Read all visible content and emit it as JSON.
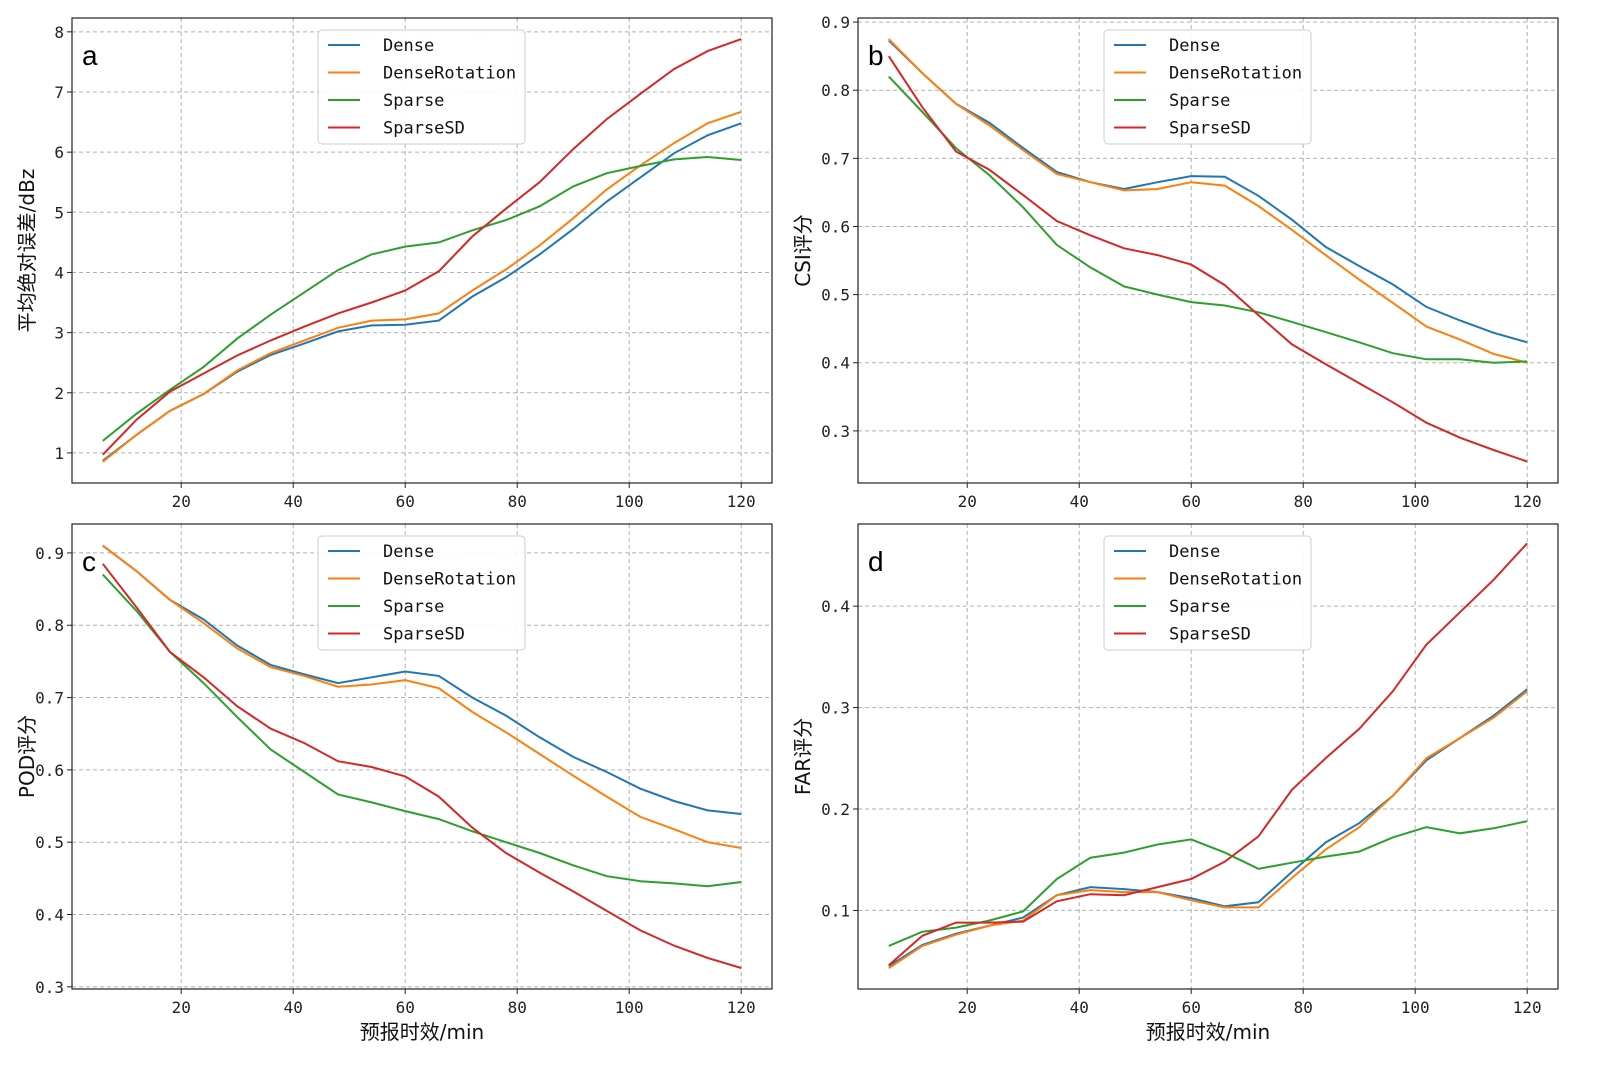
{
  "colors": {
    "Dense": "#1f77b4",
    "DenseRotation": "#ff7f0e",
    "Sparse": "#2ca02c",
    "SparseSD": "#d62728"
  },
  "chart_data": [
    {
      "type": "line",
      "panel_label": "a",
      "ylabel": "平均绝对误差/dBz",
      "xlabel": "",
      "xlim": [
        0.5,
        125.5
      ],
      "ylim": [
        0.5,
        8.23
      ],
      "grid": true,
      "legend": "top-center",
      "xticks": [
        "20",
        "40",
        "60",
        "80",
        "100",
        "120"
      ],
      "yticks": [
        "1",
        "2",
        "3",
        "4",
        "5",
        "6",
        "7",
        "8"
      ],
      "x": [
        6,
        12,
        18,
        24,
        30,
        36,
        42,
        48,
        54,
        60,
        66,
        72,
        78,
        84,
        90,
        96,
        102,
        108,
        114,
        120
      ],
      "series": [
        {
          "name": "Dense",
          "values": [
            0.87,
            1.3,
            1.7,
            1.98,
            2.35,
            2.63,
            2.82,
            3.02,
            3.12,
            3.13,
            3.2,
            3.6,
            3.92,
            4.3,
            4.72,
            5.18,
            5.58,
            5.98,
            6.28,
            6.48
          ]
        },
        {
          "name": "DenseRotation",
          "values": [
            0.85,
            1.3,
            1.7,
            1.98,
            2.37,
            2.66,
            2.87,
            3.08,
            3.2,
            3.22,
            3.32,
            3.7,
            4.05,
            4.45,
            4.9,
            5.38,
            5.78,
            6.15,
            6.48,
            6.67
          ]
        },
        {
          "name": "Sparse",
          "values": [
            1.2,
            1.65,
            2.05,
            2.43,
            2.9,
            3.3,
            3.67,
            4.04,
            4.3,
            4.43,
            4.5,
            4.7,
            4.87,
            5.1,
            5.43,
            5.65,
            5.77,
            5.88,
            5.92,
            5.87
          ]
        },
        {
          "name": "SparseSD",
          "values": [
            0.97,
            1.55,
            2.02,
            2.32,
            2.62,
            2.87,
            3.1,
            3.32,
            3.5,
            3.7,
            4.02,
            4.6,
            5.06,
            5.5,
            6.05,
            6.55,
            6.97,
            7.38,
            7.68,
            7.88
          ]
        }
      ]
    },
    {
      "type": "line",
      "panel_label": "b",
      "ylabel": "CSI评分",
      "xlabel": "",
      "xlim": [
        0.5,
        125.5
      ],
      "ylim": [
        0.2235,
        0.906
      ],
      "grid": true,
      "legend": "top-center",
      "xticks": [
        "20",
        "40",
        "60",
        "80",
        "100",
        "120"
      ],
      "yticks": [
        "0.3",
        "0.4",
        "0.5",
        "0.6",
        "0.7",
        "0.8",
        "0.9"
      ],
      "x": [
        6,
        12,
        18,
        24,
        30,
        36,
        42,
        48,
        54,
        60,
        66,
        72,
        78,
        84,
        90,
        96,
        102,
        108,
        114,
        120
      ],
      "series": [
        {
          "name": "Dense",
          "values": [
            0.873,
            0.825,
            0.78,
            0.752,
            0.715,
            0.68,
            0.665,
            0.655,
            0.665,
            0.674,
            0.673,
            0.645,
            0.61,
            0.57,
            0.542,
            0.515,
            0.482,
            0.462,
            0.444,
            0.43
          ]
        },
        {
          "name": "DenseRotation",
          "values": [
            0.875,
            0.825,
            0.78,
            0.748,
            0.712,
            0.677,
            0.665,
            0.653,
            0.655,
            0.665,
            0.66,
            0.63,
            0.595,
            0.558,
            0.522,
            0.488,
            0.453,
            0.434,
            0.413,
            0.4
          ]
        },
        {
          "name": "Sparse",
          "values": [
            0.82,
            0.768,
            0.715,
            0.675,
            0.628,
            0.573,
            0.54,
            0.512,
            0.5,
            0.489,
            0.484,
            0.474,
            0.46,
            0.445,
            0.43,
            0.414,
            0.405,
            0.405,
            0.4,
            0.402
          ]
        },
        {
          "name": "SparseSD",
          "values": [
            0.85,
            0.775,
            0.71,
            0.683,
            0.646,
            0.608,
            0.587,
            0.568,
            0.558,
            0.544,
            0.514,
            0.47,
            0.427,
            0.398,
            0.37,
            0.342,
            0.312,
            0.29,
            0.272,
            0.255
          ]
        }
      ]
    },
    {
      "type": "line",
      "panel_label": "c",
      "ylabel": "POD评分",
      "xlabel": "预报时效/min",
      "xlim": [
        0.5,
        125.5
      ],
      "ylim": [
        0.297,
        0.94
      ],
      "grid": true,
      "legend": "top-center",
      "xticks": [
        "20",
        "40",
        "60",
        "80",
        "100",
        "120"
      ],
      "yticks": [
        "0.3",
        "0.4",
        "0.5",
        "0.6",
        "0.7",
        "0.8",
        "0.9"
      ],
      "x": [
        6,
        12,
        18,
        24,
        30,
        36,
        42,
        48,
        54,
        60,
        66,
        72,
        78,
        84,
        90,
        96,
        102,
        108,
        114,
        120
      ],
      "series": [
        {
          "name": "Dense",
          "values": [
            0.91,
            0.875,
            0.835,
            0.808,
            0.772,
            0.745,
            0.732,
            0.72,
            0.728,
            0.736,
            0.73,
            0.7,
            0.675,
            0.645,
            0.618,
            0.597,
            0.574,
            0.557,
            0.544,
            0.539
          ]
        },
        {
          "name": "DenseRotation",
          "values": [
            0.91,
            0.875,
            0.835,
            0.803,
            0.768,
            0.742,
            0.73,
            0.715,
            0.718,
            0.724,
            0.713,
            0.68,
            0.652,
            0.622,
            0.592,
            0.563,
            0.535,
            0.518,
            0.5,
            0.492
          ]
        },
        {
          "name": "Sparse",
          "values": [
            0.87,
            0.82,
            0.763,
            0.72,
            0.673,
            0.628,
            0.597,
            0.566,
            0.555,
            0.543,
            0.532,
            0.515,
            0.5,
            0.485,
            0.468,
            0.453,
            0.446,
            0.443,
            0.439,
            0.445
          ]
        },
        {
          "name": "SparseSD",
          "values": [
            0.885,
            0.825,
            0.763,
            0.728,
            0.688,
            0.657,
            0.637,
            0.612,
            0.604,
            0.591,
            0.563,
            0.52,
            0.485,
            0.458,
            0.432,
            0.405,
            0.378,
            0.357,
            0.34,
            0.326
          ]
        }
      ]
    },
    {
      "type": "line",
      "panel_label": "d",
      "ylabel": "FAR评分",
      "xlabel": "预报时效/min",
      "xlim": [
        0.5,
        125.5
      ],
      "ylim": [
        0.0225,
        0.481
      ],
      "grid": true,
      "legend": "top-center",
      "xticks": [
        "20",
        "40",
        "60",
        "80",
        "100",
        "120"
      ],
      "yticks": [
        "0.1",
        "0.2",
        "0.3",
        "0.4"
      ],
      "x": [
        6,
        12,
        18,
        24,
        30,
        36,
        42,
        48,
        54,
        60,
        66,
        72,
        78,
        84,
        90,
        96,
        102,
        108,
        114,
        120
      ],
      "series": [
        {
          "name": "Dense",
          "values": [
            0.045,
            0.066,
            0.077,
            0.085,
            0.093,
            0.115,
            0.123,
            0.121,
            0.118,
            0.112,
            0.104,
            0.108,
            0.138,
            0.167,
            0.186,
            0.213,
            0.248,
            0.27,
            0.292,
            0.318
          ]
        },
        {
          "name": "DenseRotation",
          "values": [
            0.043,
            0.065,
            0.076,
            0.085,
            0.09,
            0.115,
            0.12,
            0.118,
            0.118,
            0.11,
            0.103,
            0.103,
            0.132,
            0.16,
            0.182,
            0.213,
            0.25,
            0.27,
            0.29,
            0.316
          ]
        },
        {
          "name": "Sparse",
          "values": [
            0.065,
            0.079,
            0.083,
            0.09,
            0.099,
            0.131,
            0.152,
            0.157,
            0.165,
            0.17,
            0.157,
            0.141,
            0.147,
            0.153,
            0.158,
            0.172,
            0.182,
            0.176,
            0.181,
            0.188
          ]
        },
        {
          "name": "SparseSD",
          "values": [
            0.046,
            0.075,
            0.088,
            0.088,
            0.089,
            0.109,
            0.116,
            0.115,
            0.123,
            0.131,
            0.148,
            0.173,
            0.219,
            0.25,
            0.279,
            0.316,
            0.362,
            0.394,
            0.426,
            0.462
          ]
        }
      ]
    }
  ]
}
